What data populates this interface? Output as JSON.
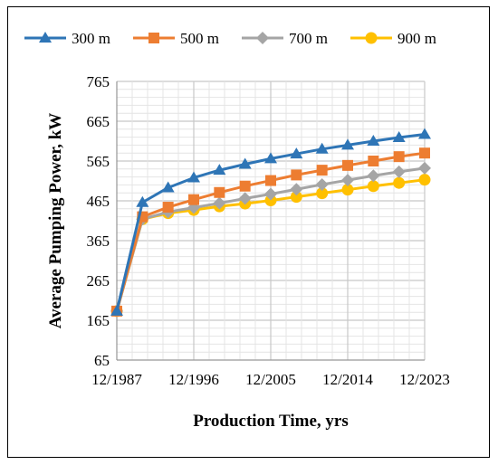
{
  "chart_data": {
    "type": "line",
    "xlabel": "Production Time, yrs",
    "ylabel": "Average Pumping Power, kW",
    "ylim": [
      65,
      765
    ],
    "xlim": [
      1987.92,
      2023.92
    ],
    "yticks": [
      65,
      165,
      265,
      365,
      465,
      565,
      665,
      765
    ],
    "ytick_labels": [
      "65",
      "165",
      "265",
      "365",
      "465",
      "565",
      "665",
      "765"
    ],
    "xticks": [
      1987.92,
      1996.92,
      2005.92,
      2014.92,
      2023.92
    ],
    "xtick_labels": [
      "12/1987",
      "12/1996",
      "12/2005",
      "12/2014",
      "12/2023"
    ],
    "grid": true,
    "legend_position": "top",
    "x": [
      1987.92,
      1990.92,
      1993.92,
      1996.92,
      1999.92,
      2002.92,
      2005.92,
      2008.92,
      2011.92,
      2014.92,
      2017.92,
      2020.92,
      2023.92
    ],
    "series": [
      {
        "name": "300 m",
        "color": "#2E75B6",
        "marker": "triangle",
        "values": [
          188,
          461,
          498,
          523,
          542,
          557,
          571,
          583,
          595,
          605,
          615,
          624,
          632
        ]
      },
      {
        "name": "500 m",
        "color": "#ED7D31",
        "marker": "square",
        "values": [
          188,
          425,
          449,
          468,
          486,
          502,
          516,
          530,
          542,
          554,
          565,
          576,
          585
        ]
      },
      {
        "name": "700 m",
        "color": "#A5A5A5",
        "marker": "diamond",
        "values": [
          188,
          419,
          437,
          448,
          459,
          471,
          482,
          494,
          506,
          517,
          528,
          538,
          547
        ]
      },
      {
        "name": "900 m",
        "color": "#FFC000",
        "marker": "circle",
        "values": [
          188,
          419,
          434,
          442,
          451,
          458,
          466,
          475,
          484,
          493,
          502,
          510,
          518
        ]
      }
    ]
  }
}
